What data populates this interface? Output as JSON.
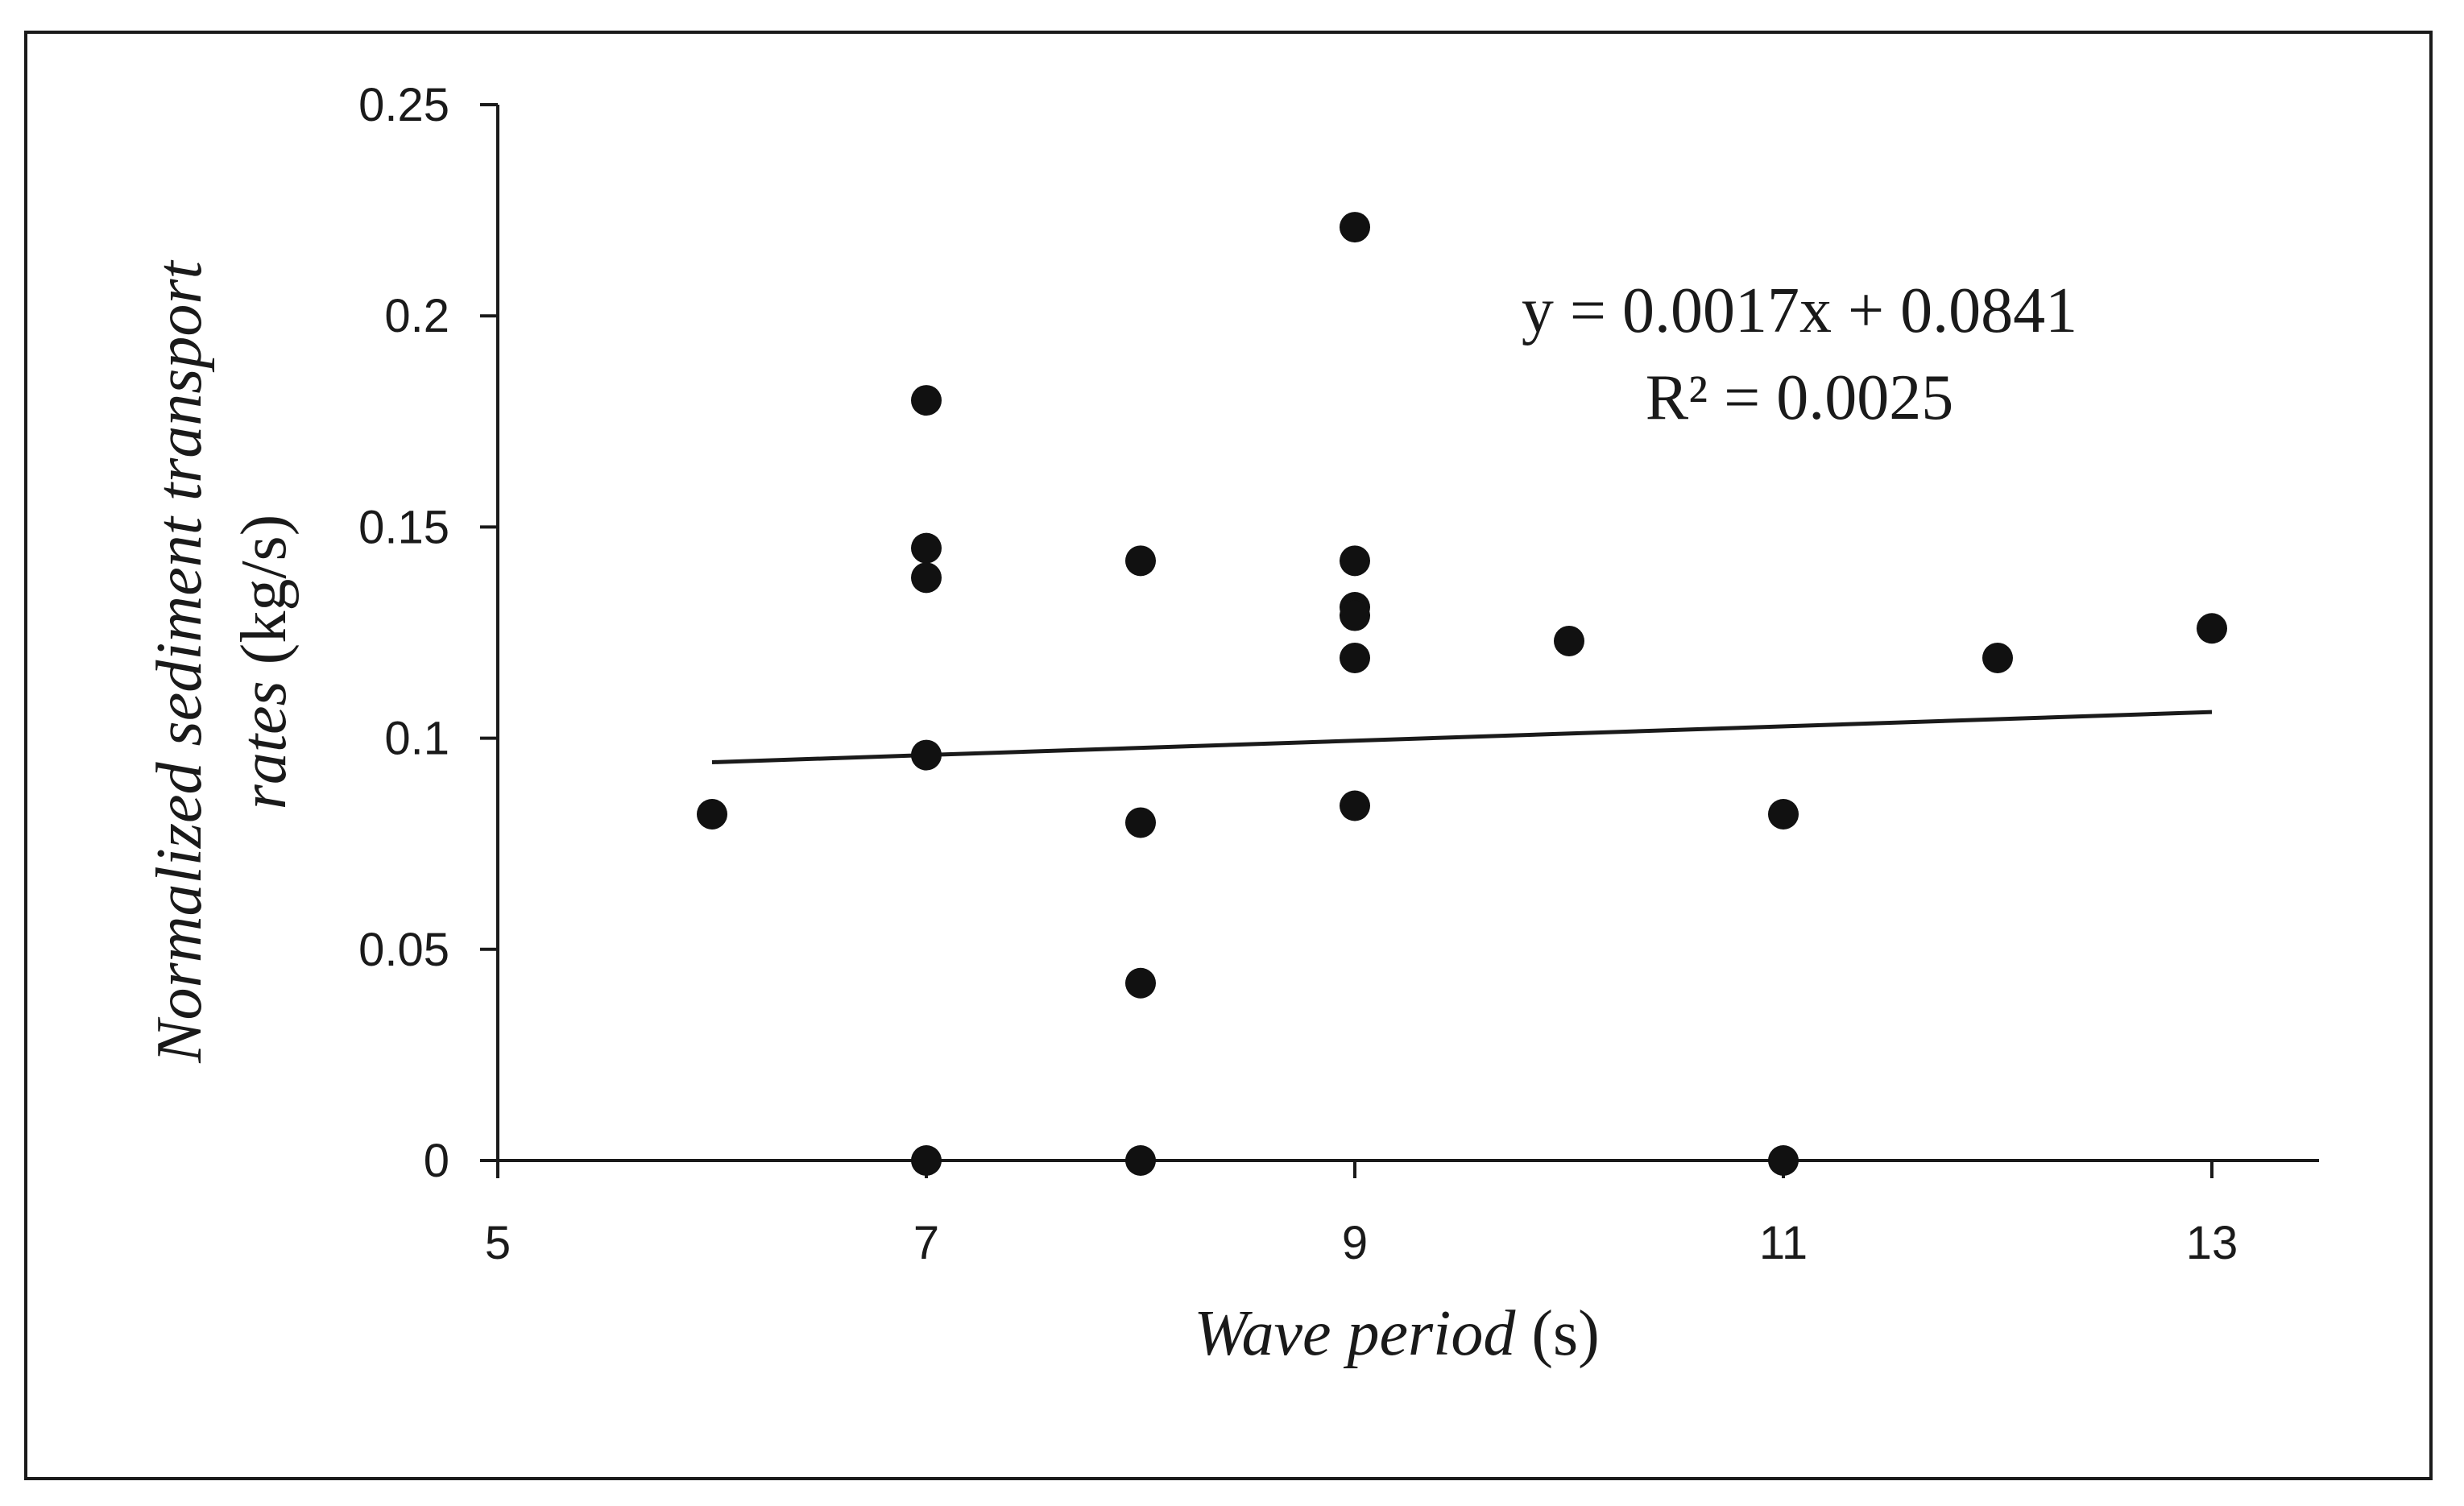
{
  "chart_data": {
    "type": "scatter",
    "xlabel_italic": "Wave period",
    "xlabel_unit": "(s)",
    "ylabel_line1": "Normalized sediment transport",
    "ylabel_line2_italic": "rates",
    "ylabel_line2_unit": "(kg/s)",
    "xlim": [
      5,
      13.5
    ],
    "ylim": [
      0,
      0.25
    ],
    "xticks": [
      5,
      7,
      9,
      11,
      13
    ],
    "xtick_labels": [
      "5",
      "7",
      "9",
      "11",
      "13"
    ],
    "yticks": [
      0,
      0.05,
      0.1,
      0.15,
      0.2,
      0.25
    ],
    "ytick_labels": [
      "0",
      "0.05",
      "0.1",
      "0.15",
      "0.2",
      "0.25"
    ],
    "grid": false,
    "legend": "none",
    "marker_color": "#111111",
    "points": [
      {
        "x": 6,
        "y": 0.082
      },
      {
        "x": 7,
        "y": 0.18
      },
      {
        "x": 7,
        "y": 0.145
      },
      {
        "x": 7,
        "y": 0.138
      },
      {
        "x": 7,
        "y": 0.096
      },
      {
        "x": 7,
        "y": 0.0
      },
      {
        "x": 8,
        "y": 0.142
      },
      {
        "x": 8,
        "y": 0.08
      },
      {
        "x": 8,
        "y": 0.042
      },
      {
        "x": 8,
        "y": 0.0
      },
      {
        "x": 9,
        "y": 0.221
      },
      {
        "x": 9,
        "y": 0.142
      },
      {
        "x": 9,
        "y": 0.131
      },
      {
        "x": 9,
        "y": 0.129
      },
      {
        "x": 9,
        "y": 0.119
      },
      {
        "x": 9,
        "y": 0.084
      },
      {
        "x": 10,
        "y": 0.123
      },
      {
        "x": 11,
        "y": 0.082
      },
      {
        "x": 11,
        "y": 0.0
      },
      {
        "x": 12,
        "y": 0.119
      },
      {
        "x": 13,
        "y": 0.126
      }
    ],
    "trendline": {
      "slope": 0.0017,
      "intercept": 0.0841,
      "x_range": [
        6,
        13
      ],
      "equation": "y = 0.0017x + 0.0841",
      "r_squared": "R² = 0.0025"
    }
  }
}
